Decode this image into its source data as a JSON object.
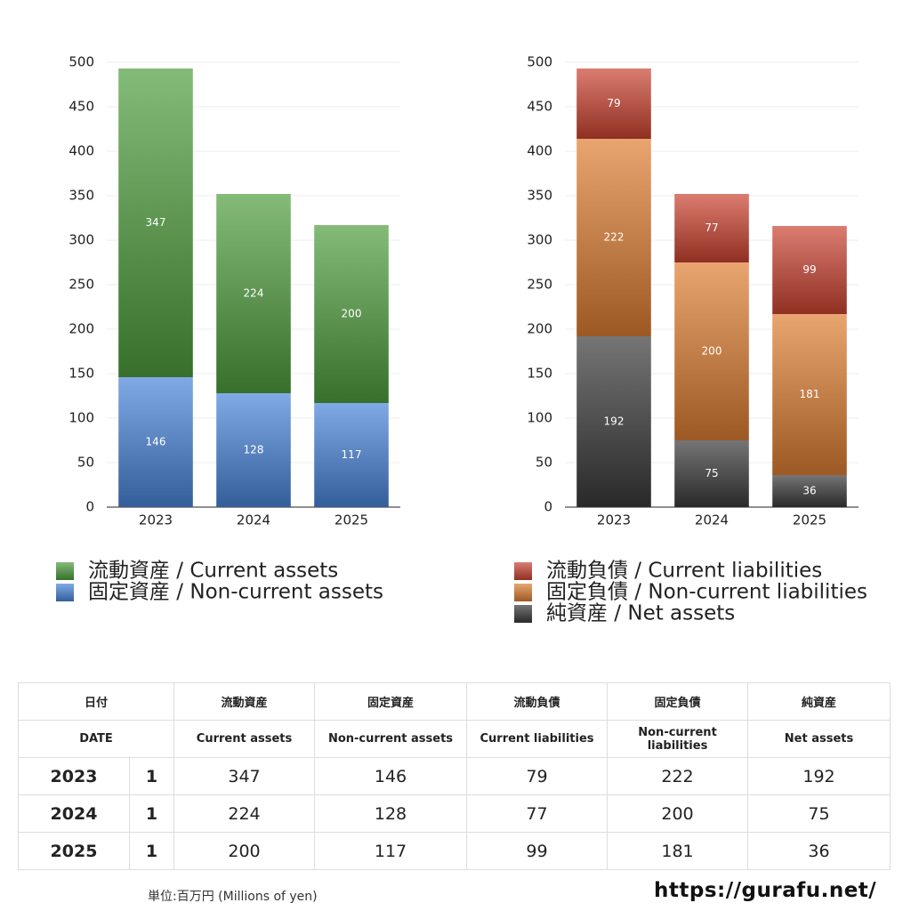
{
  "chart_data": [
    {
      "type": "bar",
      "stacked": true,
      "categories": [
        "2023",
        "2024",
        "2025"
      ],
      "series": [
        {
          "name": "固定資産 / Non-current assets",
          "color": "#4a86db",
          "values": [
            146,
            128,
            117
          ]
        },
        {
          "name": "流動資産 / Current assets",
          "color": "#4f9e3e",
          "values": [
            347,
            224,
            200
          ]
        }
      ],
      "ylim": [
        0,
        500
      ],
      "yticks": [
        0,
        50,
        100,
        150,
        200,
        250,
        300,
        350,
        400,
        450,
        500
      ],
      "grid": true
    },
    {
      "type": "bar",
      "stacked": true,
      "categories": [
        "2023",
        "2024",
        "2025"
      ],
      "series": [
        {
          "name": "純資産 / Net assets",
          "color": "#3a3a3a",
          "values": [
            192,
            75,
            36
          ]
        },
        {
          "name": "固定負債 / Non-current liabilities",
          "color": "#e07f33",
          "values": [
            222,
            200,
            181
          ]
        },
        {
          "name": "流動負債 / Current liabilities",
          "color": "#cc4432",
          "values": [
            79,
            77,
            99
          ]
        }
      ],
      "ylim": [
        0,
        500
      ],
      "yticks": [
        0,
        50,
        100,
        150,
        200,
        250,
        300,
        350,
        400,
        450,
        500
      ],
      "grid": true
    }
  ],
  "table": {
    "header": [
      [
        "日付",
        "流動資産",
        "固定資産",
        "流動負債",
        "固定負債",
        "純資産"
      ],
      [
        "DATE",
        "Current assets",
        "Non-current assets",
        "Current liabilities",
        "Non-current liabilities",
        "Net assets"
      ]
    ],
    "rows": [
      [
        "2023",
        "1",
        347,
        146,
        79,
        222,
        192
      ],
      [
        "2024",
        "1",
        224,
        128,
        77,
        200,
        75
      ],
      [
        "2025",
        "1",
        200,
        117,
        99,
        181,
        36
      ]
    ]
  },
  "footer": {
    "unit": "単位:百万円 (Millions of yen)",
    "url": "https://gurafu.net/"
  }
}
